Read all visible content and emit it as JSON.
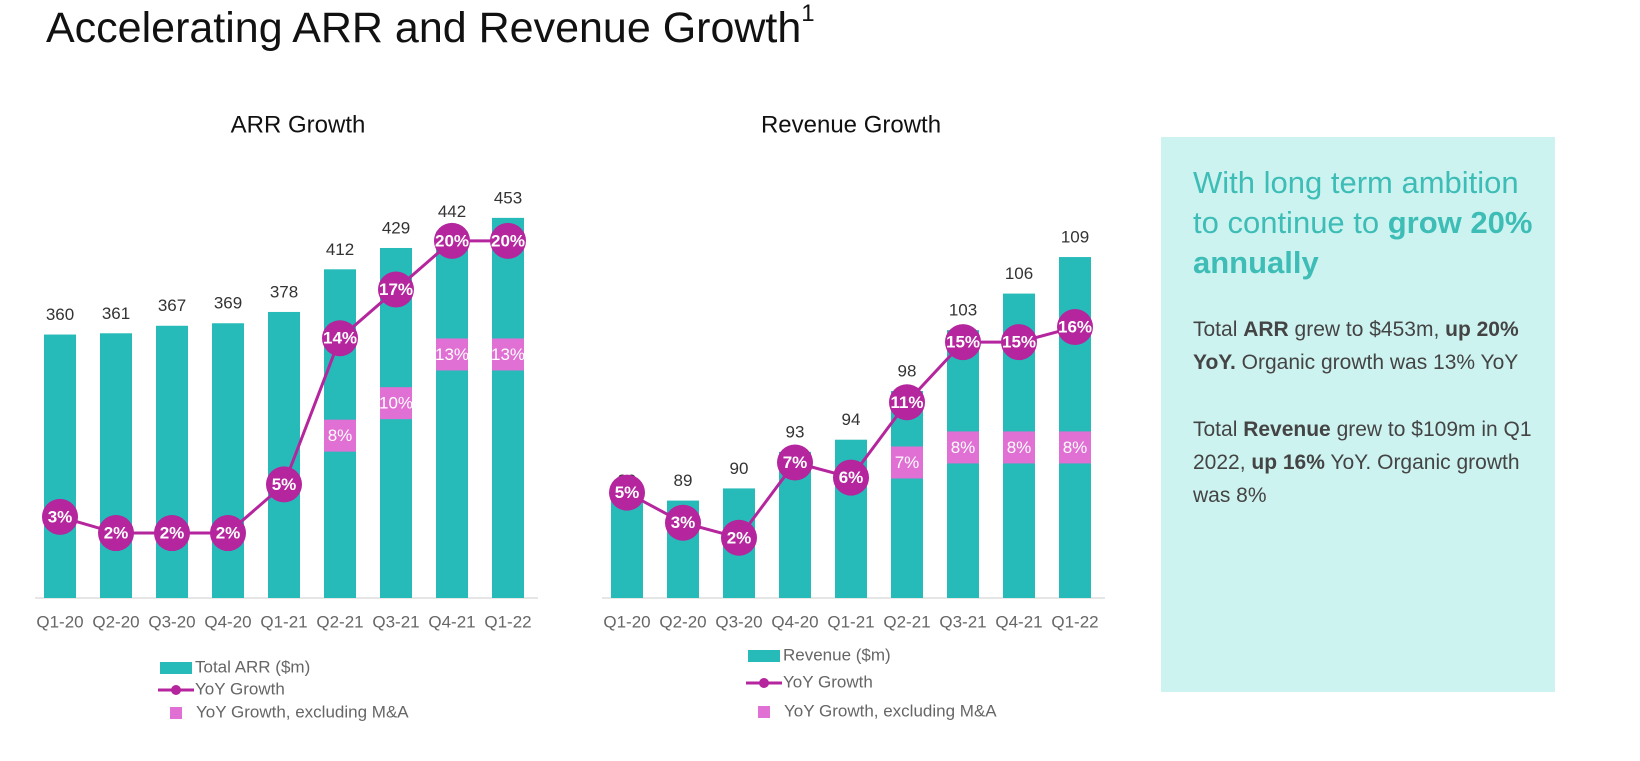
{
  "title": "Accelerating ARR and Revenue Growth",
  "title_note": "1",
  "chart_data": [
    {
      "type": "bar",
      "title": "ARR Growth",
      "categories": [
        "Q1-20",
        "Q2-20",
        "Q3-20",
        "Q4-20",
        "Q1-21",
        "Q2-21",
        "Q3-21",
        "Q4-21",
        "Q1-22"
      ],
      "ylim": [
        150,
        480
      ],
      "y2lim": [
        -2,
        23.5
      ],
      "series": [
        {
          "name": "Total ARR ($m)",
          "type": "bar",
          "color": "#26bbb8",
          "values": [
            360,
            361,
            367,
            369,
            378,
            412,
            429,
            442,
            453
          ]
        },
        {
          "name": "YoY Growth",
          "type": "line",
          "axis": "y2",
          "color": "#b5259d",
          "values": [
            3,
            2,
            2,
            2,
            5,
            14,
            17,
            20,
            20
          ],
          "value_labels": [
            "3%",
            "2%",
            "2%",
            "2%",
            "5%",
            "14%",
            "17%",
            "20%",
            "20%"
          ]
        },
        {
          "name": "YoY Growth, excluding M&A",
          "type": "scatter",
          "axis": "y2",
          "color": "#e070d4",
          "values": [
            null,
            null,
            null,
            null,
            null,
            8,
            10,
            13,
            13
          ],
          "value_labels": [
            null,
            null,
            null,
            null,
            null,
            "8%",
            "10%",
            "13%",
            "13%"
          ]
        }
      ]
    },
    {
      "type": "bar",
      "title": "Revenue Growth",
      "categories": [
        "Q1-20",
        "Q2-20",
        "Q3-20",
        "Q4-20",
        "Q1-21",
        "Q2-21",
        "Q3-21",
        "Q4-21",
        "Q1-22"
      ],
      "ylim": [
        81,
        115
      ],
      "y2lim": [
        -2,
        25.5
      ],
      "series": [
        {
          "name": "Revenue ($m)",
          "type": "bar",
          "color": "#26bbb8",
          "values": [
            89,
            89,
            90,
            93,
            94,
            98,
            103,
            106,
            109
          ]
        },
        {
          "name": "YoY Growth",
          "type": "line",
          "axis": "y2",
          "color": "#b5259d",
          "values": [
            5,
            3,
            2,
            7,
            6,
            11,
            15,
            15,
            16
          ],
          "value_labels": [
            "5%",
            "3%",
            "2%",
            "7%",
            "6%",
            "11%",
            "15%",
            "15%",
            "16%"
          ]
        },
        {
          "name": "YoY Growth, excluding M&A",
          "type": "scatter",
          "axis": "y2",
          "color": "#e070d4",
          "values": [
            null,
            null,
            null,
            null,
            null,
            7,
            8,
            8,
            8
          ],
          "value_labels": [
            null,
            null,
            null,
            null,
            null,
            "7%",
            "8%",
            "8%",
            "8%"
          ]
        }
      ]
    }
  ],
  "callout": {
    "heading": [
      {
        "text": "With long term ambition to continue to ",
        "bold": false
      },
      {
        "text": "grow 20% annually",
        "bold": true
      }
    ],
    "paragraphs": [
      [
        {
          "text": "Total ",
          "bold": false
        },
        {
          "text": "ARR",
          "bold": true
        },
        {
          "text": " grew to $453m, ",
          "bold": false
        },
        {
          "text": "up 20% YoY.",
          "bold": true
        },
        {
          "text": " Organic growth was 13% YoY",
          "bold": false
        }
      ],
      [
        {
          "text": "Total ",
          "bold": false
        },
        {
          "text": "Revenue",
          "bold": true
        },
        {
          "text": " grew to $109m in Q1 2022, ",
          "bold": false
        },
        {
          "text": "up 16%",
          "bold": true
        },
        {
          "text": " YoY. Organic growth was 8%",
          "bold": false
        }
      ]
    ]
  }
}
